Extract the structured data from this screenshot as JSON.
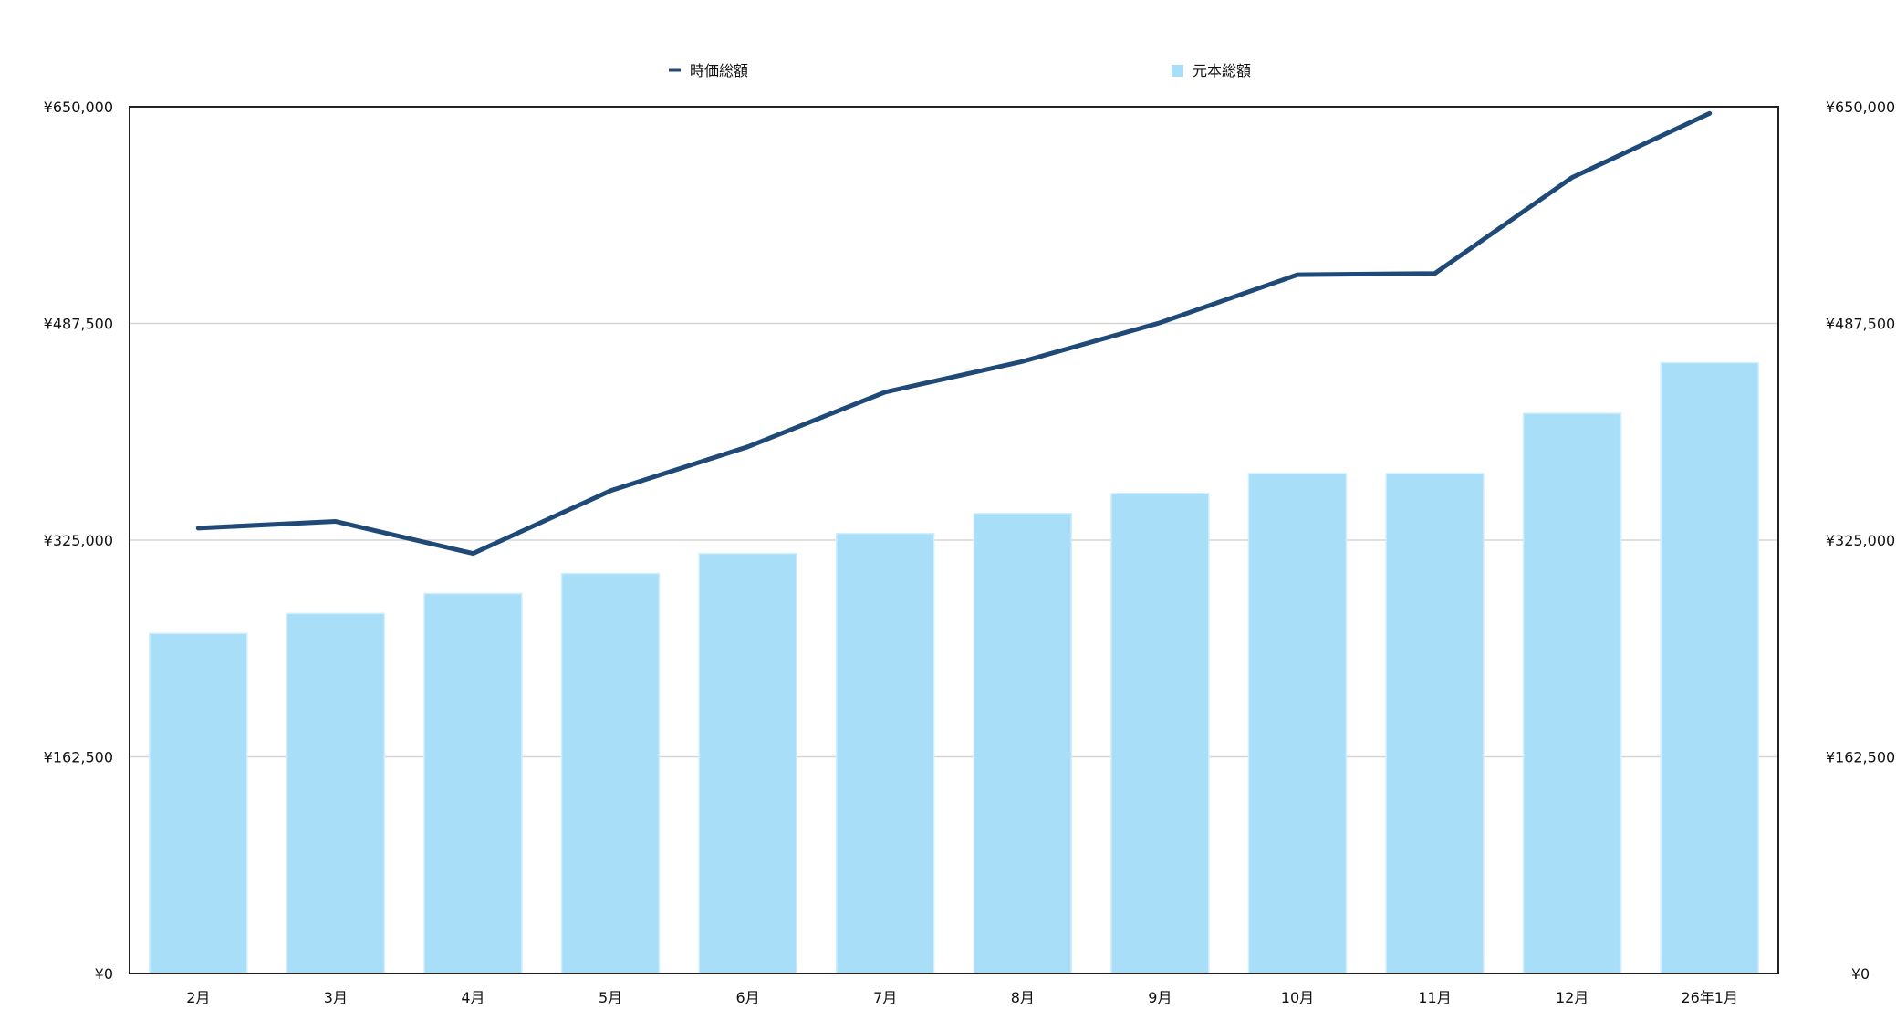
{
  "chart_data": {
    "type": "bar",
    "categories": [
      "2月",
      "3月",
      "4月",
      "5月",
      "6月",
      "7月",
      "8月",
      "9月",
      "10月",
      "11月",
      "12月",
      "26年1月"
    ],
    "series": [
      {
        "name": "元本総額",
        "type": "bar",
        "color": "#a8def8",
        "values": [
          255000,
          270000,
          285000,
          300000,
          315000,
          330000,
          345000,
          360000,
          375000,
          375000,
          420000,
          458000
        ]
      },
      {
        "name": "時価総額",
        "type": "line",
        "color": "#1f4a78",
        "values": [
          334000,
          339000,
          315000,
          362000,
          395000,
          436000,
          459000,
          488000,
          524000,
          525000,
          597000,
          645000
        ]
      }
    ],
    "ylim": [
      0,
      650000
    ],
    "yticks": [
      0,
      162500,
      325000,
      487500,
      650000
    ],
    "ytick_labels": [
      "¥0",
      "¥162,500",
      "¥325,000",
      "¥487,500",
      "¥650,000"
    ],
    "grid": true,
    "legend_position": "top"
  }
}
